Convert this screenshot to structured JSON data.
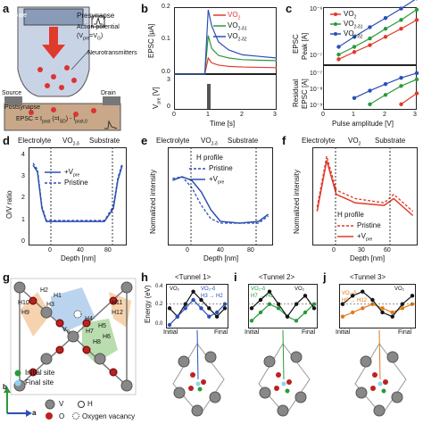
{
  "panels": {
    "a": {
      "letter": "a",
      "gate": "Gate",
      "presynapse": "Presynapse",
      "action_potential_1": "Action potential",
      "action_potential_2": "(V",
      "action_potential_sub": "pre",
      "action_potential_3": "=V",
      "action_potential_sub2": "G",
      "action_potential_4": ")",
      "neurotransmitters": "Neurotransmitters",
      "source": "Source",
      "drain": "Drain",
      "postsynapse": "Postsynapse",
      "epsc_eq": "EPSC = I",
      "epsc_sub1": "post",
      "epsc_mid": " (=I",
      "epsc_sub2": "SD",
      "epsc_mid2": ") - I",
      "epsc_sub3": "post,0"
    },
    "b": {
      "letter": "b",
      "ylabel": "EPSC [μA]",
      "ylabel2": "V",
      "ylabel2_sub": "pre",
      "ylabel2_unit": " [V]",
      "xlabel": "Time [s]",
      "yticks": [
        "0.2",
        "0.1",
        "0.0"
      ],
      "yticks2": [
        "3",
        "0"
      ],
      "xticks": [
        "0",
        "1",
        "2",
        "3"
      ],
      "legend": [
        {
          "name": "VO",
          "sub": "2",
          "color": "#e8322a"
        },
        {
          "name": "VO",
          "sub": "2-δ1",
          "color": "#2a9a3a"
        },
        {
          "name": "VO",
          "sub": "2-δ2",
          "color": "#2b4fb5"
        }
      ]
    },
    "c": {
      "letter": "c",
      "ylabel_top": "EPSC",
      "ylabel_top2": "Peak [A]",
      "ylabel_bot": "Residual",
      "ylabel_bot2": "EPSC [A]",
      "xlabel": "Pulse amplitude [V]",
      "yticks_top": [
        "10⁻⁶",
        "10⁻⁷"
      ],
      "yticks_bot": [
        "10⁻⁷",
        "10⁻⁸",
        "10⁻⁹"
      ],
      "xticks": [
        "0",
        "1",
        "2",
        "3"
      ],
      "legend": [
        {
          "name": "VO",
          "sub": "2",
          "color": "#e8322a"
        },
        {
          "name": "VO",
          "sub": "2-δ1",
          "color": "#2a9a3a"
        },
        {
          "name": "VO",
          "sub": "2-δ2",
          "color": "#2b4fb5"
        }
      ]
    },
    "d": {
      "letter": "d",
      "electrolyte": "Electrolyte",
      "film": "VO",
      "film_sub": "2-δ",
      "substrate": "Substrate",
      "ylabel": "O/V ratio",
      "xlabel": "Depth [nm]",
      "xticks": [
        "0",
        "40",
        "80"
      ],
      "yticks": [
        "4",
        "3",
        "2",
        "1",
        "0"
      ],
      "legend_1": "+V",
      "legend_1_sub": "pre",
      "legend_2": "Pristine"
    },
    "e": {
      "letter": "e",
      "electrolyte": "Electrolyte",
      "film": "VO",
      "film_sub": "2-δ",
      "substrate": "Substrate",
      "profile": "H profile",
      "legend_1": "Pristine",
      "legend_2": "+V",
      "legend_2_sub": "pre",
      "ylabel": "Normalized intensity",
      "xlabel": "Depth [nm]",
      "xticks": [
        "0",
        "40",
        "80"
      ]
    },
    "f": {
      "letter": "f",
      "electrolyte": "Electrolyte",
      "film": "VO",
      "film_sub": "2",
      "substrate": "Substrate",
      "profile": "H profile",
      "legend_1": "Pristine",
      "legend_2": "+V",
      "legend_2_sub": "pre",
      "ylabel": "Normalized intensity",
      "xlabel": "Depth [nm]",
      "xticks": [
        "0",
        "30",
        "60"
      ]
    },
    "g": {
      "letter": "g",
      "sites": [
        "H1",
        "H2",
        "H3",
        "H4",
        "H5",
        "H6",
        "H7",
        "H8",
        "H9",
        "H10",
        "H11",
        "H12"
      ],
      "vo": "V",
      "vo_sub": "O",
      "legend_initial": "Initial site",
      "legend_final": "Final site",
      "legend_v": "V",
      "legend_o": "O",
      "legend_h": "H",
      "legend_vac": "Oxygen vacancy",
      "axis_b": "b",
      "axis_a": "a"
    },
    "h": {
      "letter": "h",
      "title": "<Tunnel 1>",
      "ylabel": "Energy (eV)",
      "yticks": [
        "0.4",
        "0.2",
        "0.0"
      ],
      "xlabels": [
        "Initial",
        "Final"
      ],
      "leg1": "VO₂",
      "leg2": "VO₂-δ",
      "leg3": "H3 → H2"
    },
    "i": {
      "letter": "i",
      "title": "<Tunnel 2>",
      "leg1": "VO₂-δ",
      "leg2": "H7 → H6",
      "leg3": "VO₂",
      "xlabels": [
        "Initial",
        "Final"
      ]
    },
    "j": {
      "letter": "j",
      "title": "<Tunnel 3>",
      "leg1": "VO₂-δ",
      "leg2": "H9 → H12",
      "leg3": "VO₂",
      "xlabels": [
        "Initial",
        "Final"
      ]
    }
  },
  "chart_data": [
    {
      "panel": "b",
      "type": "line",
      "xlabel": "Time [s]",
      "ylabel": "EPSC [μA]",
      "xlim": [
        0,
        3
      ],
      "ylim": [
        0,
        0.2
      ],
      "series": [
        {
          "name": "VO2",
          "x": [
            0,
            0.9,
            1.0,
            1.1,
            1.3,
            1.6,
            2.0,
            2.5,
            3.0
          ],
          "y": [
            0.0,
            0.0,
            0.05,
            0.035,
            0.028,
            0.024,
            0.022,
            0.021,
            0.02
          ]
        },
        {
          "name": "VO2-δ1",
          "x": [
            0,
            0.9,
            1.0,
            1.1,
            1.3,
            1.6,
            2.0,
            2.5,
            3.0
          ],
          "y": [
            0.0,
            0.0,
            0.12,
            0.08,
            0.058,
            0.05,
            0.045,
            0.043,
            0.042
          ]
        },
        {
          "name": "VO2-δ2",
          "x": [
            0,
            0.9,
            1.0,
            1.1,
            1.3,
            1.6,
            2.0,
            2.5,
            3.0
          ],
          "y": [
            0.0,
            0.0,
            0.2,
            0.15,
            0.1,
            0.075,
            0.06,
            0.055,
            0.05
          ]
        }
      ]
    },
    {
      "panel": "c-top",
      "type": "line",
      "xlabel": "Pulse amplitude [V]",
      "ylabel": "EPSC Peak [A]",
      "xlim": [
        0,
        3
      ],
      "yscale": "log",
      "series": [
        {
          "name": "VO2",
          "x": [
            0.5,
            1.0,
            1.5,
            2.0,
            2.5,
            3.0
          ],
          "y": [
            1e-07,
            1.5e-07,
            2.2e-07,
            3.5e-07,
            5.5e-07,
            9e-07
          ]
        },
        {
          "name": "VO2-δ1",
          "x": [
            0.5,
            1.0,
            1.5,
            2.0,
            2.5,
            3.0
          ],
          "y": [
            1.3e-07,
            2e-07,
            3.2e-07,
            5.5e-07,
            9e-07,
            1.6e-06
          ]
        },
        {
          "name": "VO2-δ2",
          "x": [
            0.5,
            1.0,
            1.5,
            2.0,
            2.5,
            3.0
          ],
          "y": [
            2e-07,
            3.5e-07,
            6e-07,
            1e-06,
            1.7e-06,
            3e-06
          ]
        }
      ]
    },
    {
      "panel": "c-bottom",
      "type": "line",
      "xlabel": "Pulse amplitude [V]",
      "ylabel": "Residual EPSC [A]",
      "xlim": [
        0,
        3
      ],
      "yscale": "log",
      "series": [
        {
          "name": "VO2",
          "x": [
            2.5,
            3.0
          ],
          "y": [
            2e-09,
            1e-08
          ]
        },
        {
          "name": "VO2-δ1",
          "x": [
            1.5,
            2.0,
            2.5,
            3.0
          ],
          "y": [
            2e-09,
            8e-09,
            3e-08,
            8e-08
          ]
        },
        {
          "name": "VO2-δ2",
          "x": [
            1.0,
            1.5,
            2.0,
            2.5,
            3.0
          ],
          "y": [
            5e-09,
            1.5e-08,
            4e-08,
            1e-07,
            2e-07
          ]
        }
      ]
    },
    {
      "panel": "d",
      "type": "line",
      "xlabel": "Depth [nm]",
      "ylabel": "O/V ratio",
      "series": [
        {
          "name": "+Vpre",
          "x": [
            -10,
            -5,
            0,
            5,
            10,
            40,
            70,
            80,
            85,
            90
          ],
          "y": [
            3.5,
            3.2,
            1.5,
            0.9,
            0.9,
            0.9,
            0.9,
            1.5,
            2.8,
            3.5
          ]
        },
        {
          "name": "Pristine",
          "x": [
            -10,
            -5,
            0,
            5,
            10,
            40,
            70,
            80,
            85,
            90
          ],
          "y": [
            3.6,
            3.3,
            1.6,
            0.95,
            0.95,
            0.95,
            0.95,
            1.6,
            2.9,
            3.6
          ]
        }
      ]
    },
    {
      "panel": "e",
      "type": "line",
      "xlabel": "Depth [nm]",
      "ylabel": "Normalized intensity",
      "series": [
        {
          "name": "Pristine",
          "x": [
            -10,
            0,
            10,
            20,
            30,
            40,
            60,
            80,
            90
          ],
          "y": [
            0.7,
            0.72,
            0.6,
            0.4,
            0.25,
            0.2,
            0.2,
            0.2,
            0.28
          ]
        },
        {
          "name": "+Vpre",
          "x": [
            -10,
            0,
            10,
            20,
            30,
            40,
            60,
            80,
            90
          ],
          "y": [
            0.68,
            0.72,
            0.68,
            0.55,
            0.35,
            0.22,
            0.2,
            0.22,
            0.3
          ]
        }
      ]
    },
    {
      "panel": "f",
      "type": "line",
      "xlabel": "Depth [nm]",
      "ylabel": "Normalized intensity",
      "series": [
        {
          "name": "Pristine",
          "x": [
            -10,
            0,
            10,
            30,
            60,
            70,
            80,
            90
          ],
          "y": [
            0.4,
            1.0,
            0.6,
            0.5,
            0.45,
            0.55,
            0.45,
            0.35
          ]
        },
        {
          "name": "+Vpre",
          "x": [
            -10,
            0,
            10,
            30,
            60,
            70,
            80,
            90
          ],
          "y": [
            0.35,
            0.95,
            0.55,
            0.45,
            0.42,
            0.5,
            0.4,
            0.3
          ]
        }
      ]
    },
    {
      "panel": "h",
      "type": "line",
      "ylabel": "Energy (eV)",
      "series": [
        {
          "name": "VO2",
          "x": [
            0,
            1,
            2,
            3,
            4,
            5,
            6,
            7
          ],
          "y": [
            0.2,
            0.1,
            0.25,
            0.4,
            0.3,
            0.2,
            0.1,
            0.2
          ]
        },
        {
          "name": "VO2-δ",
          "x": [
            0,
            1,
            2,
            3,
            4,
            5,
            6,
            7
          ],
          "y": [
            0.0,
            0.1,
            0.2,
            0.3,
            0.2,
            0.1,
            0.15,
            0.25
          ]
        }
      ]
    },
    {
      "panel": "i",
      "type": "line",
      "ylabel": "Energy (eV)",
      "series": [
        {
          "name": "VO2-δ",
          "x": [
            0,
            1,
            2,
            3,
            4,
            5,
            6,
            7
          ],
          "y": [
            0.05,
            0.15,
            0.25,
            0.2,
            0.1,
            0.05,
            0.15,
            0.25
          ]
        },
        {
          "name": "VO2",
          "x": [
            0,
            1,
            2,
            3,
            4,
            5,
            6,
            7
          ],
          "y": [
            0.2,
            0.3,
            0.4,
            0.25,
            0.1,
            0.25,
            0.35,
            0.2
          ]
        }
      ]
    },
    {
      "panel": "j",
      "type": "line",
      "ylabel": "Energy (eV)",
      "series": [
        {
          "name": "VO2-δ",
          "x": [
            0,
            1,
            2,
            3,
            4,
            5,
            6,
            7
          ],
          "y": [
            0.1,
            0.15,
            0.2,
            0.25,
            0.2,
            0.15,
            0.2,
            0.25
          ]
        },
        {
          "name": "VO2",
          "x": [
            0,
            1,
            2,
            3,
            4,
            5,
            6,
            7
          ],
          "y": [
            0.25,
            0.35,
            0.4,
            0.3,
            0.15,
            0.1,
            0.25,
            0.35
          ]
        }
      ]
    }
  ]
}
